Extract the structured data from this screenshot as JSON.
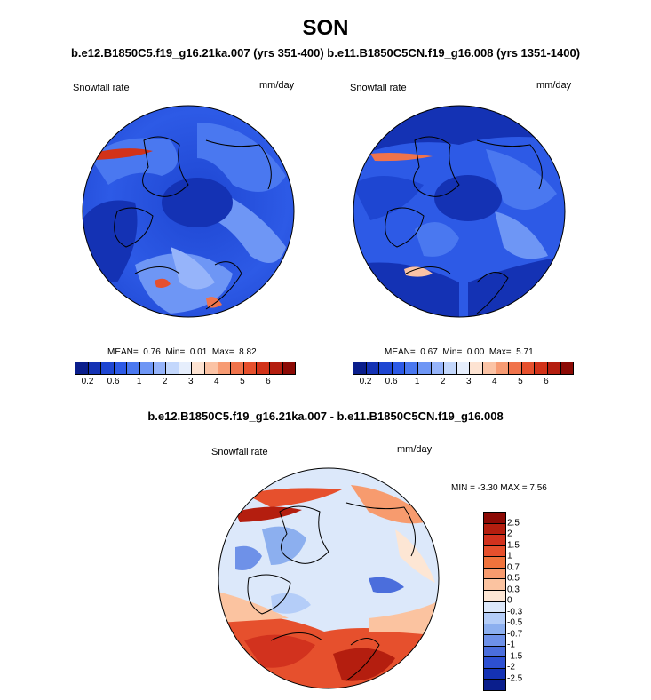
{
  "season": "SON",
  "header_line": "b.e12.B1850C5.f19_g16.21ka.007 (yrs 351-400) b.e11.B1850C5CN.f19_g16.008 (yrs 1351-1400)",
  "diff_title": "b.e12.B1850C5.f19_g16.21ka.007 - b.e11.B1850C5CN.f19_g16.008",
  "panels": {
    "left": {
      "variable": "Snowfall rate",
      "units": "mm/day",
      "stats": {
        "mean_label": "MEAN=",
        "mean": "0.76",
        "min_label": "Min=",
        "min": "0.01",
        "max_label": "Max=",
        "max": "8.82"
      }
    },
    "right": {
      "variable": "Snowfall rate",
      "units": "mm/day",
      "stats": {
        "mean_label": "MEAN=",
        "mean": "0.67",
        "min_label": "Min=",
        "min": "0.00",
        "max_label": "Max=",
        "max": "5.71"
      }
    },
    "diff": {
      "variable": "Snowfall rate",
      "units": "mm/day",
      "stats_text": "MIN =  -3.30 MAX =   7.56"
    }
  },
  "colorbar_abs": {
    "colors": [
      "#0a1e8c",
      "#1432b4",
      "#1e46d2",
      "#2d5ae6",
      "#4a78f0",
      "#6e96f5",
      "#96b4fa",
      "#c3d7fc",
      "#e6eefc",
      "#fde3d2",
      "#fbc3a5",
      "#f79b73",
      "#f0734b",
      "#e6502d",
      "#d23219",
      "#b41e0f",
      "#8c0a05"
    ],
    "labels": [
      "0.2",
      "0.6",
      "1",
      "2",
      "3",
      "4",
      "5",
      "6"
    ]
  },
  "colorbar_diff": {
    "colors": [
      "#8c0a05",
      "#b41e0f",
      "#d2321e",
      "#e6502d",
      "#f0733c",
      "#f79b6e",
      "#fbc3a0",
      "#fde6d4",
      "#dce8fa",
      "#b4cdf8",
      "#8cafef",
      "#6e91e8",
      "#4b6edc",
      "#2d50d2",
      "#1432b4",
      "#0a1e8c"
    ],
    "labels": [
      "2.5",
      "2",
      "1.5",
      "1",
      "0.7",
      "0.5",
      "0.3",
      "0",
      "-0.3",
      "-0.5",
      "-0.7",
      "-1",
      "-1.5",
      "-2",
      "-2.5"
    ]
  },
  "icons": {
    "map_left": "polar-stereographic-map",
    "map_right": "polar-stereographic-map",
    "map_diff": "polar-stereographic-map"
  }
}
